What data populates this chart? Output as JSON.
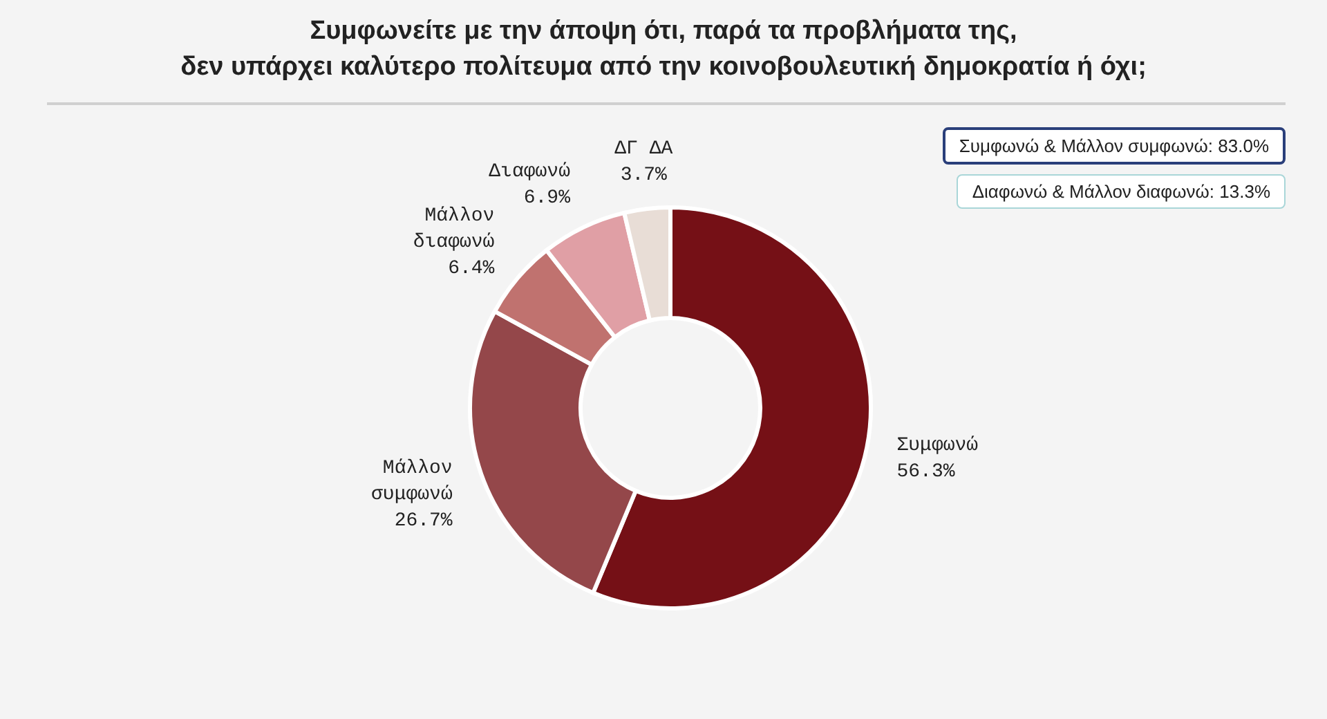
{
  "chart_data": {
    "type": "donut",
    "title": "Συμφωνείτε με την άποψη ότι, παρά τα προβλήματα της,\nδεν υπάρχει καλύτερο πολίτευμα από την κοινοβουλευτική δημοκρατία ή όχι;",
    "categories": [
      "Συμφωνώ",
      "Μάλλον συμφωνώ",
      "Μάλλον διαφωνώ",
      "Διαφωνώ",
      "ΔΓ ΔΑ"
    ],
    "values": [
      56.3,
      26.7,
      6.4,
      6.9,
      3.7
    ],
    "colors": [
      "#751016",
      "#94474a",
      "#c0726f",
      "#e09fa5",
      "#e8ddd6"
    ],
    "value_labels": [
      "56.3%",
      "26.7%",
      "6.4%",
      "6.9%",
      "3.7%"
    ],
    "annotations": [
      "Συμφωνώ & Μάλλον συμφωνώ: 83.0%",
      "Διαφωνώ & Μάλλον διαφωνώ: 13.3%"
    ],
    "legend": false
  }
}
